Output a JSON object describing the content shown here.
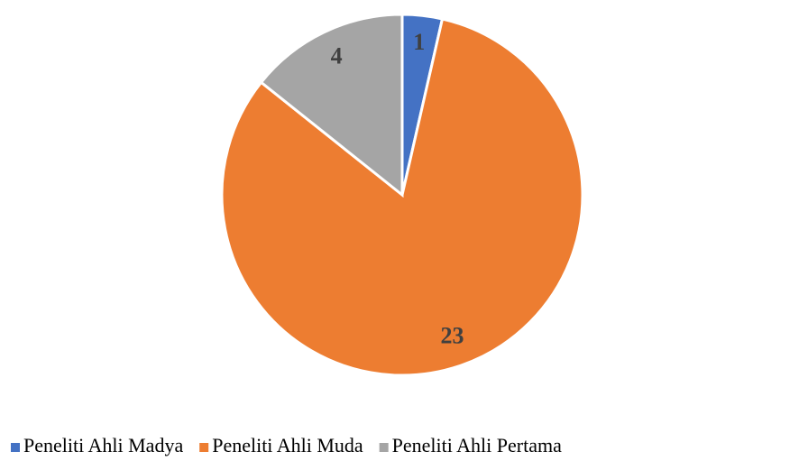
{
  "chart_data": {
    "type": "pie",
    "categories": [
      "Peneliti Ahli Madya",
      "Peneliti Ahli Muda",
      "Peneliti Ahli Pertama"
    ],
    "values": [
      1,
      23,
      4
    ],
    "colors": [
      "#4472c4",
      "#ed7d31",
      "#a5a5a5"
    ],
    "legend": "bottom"
  }
}
